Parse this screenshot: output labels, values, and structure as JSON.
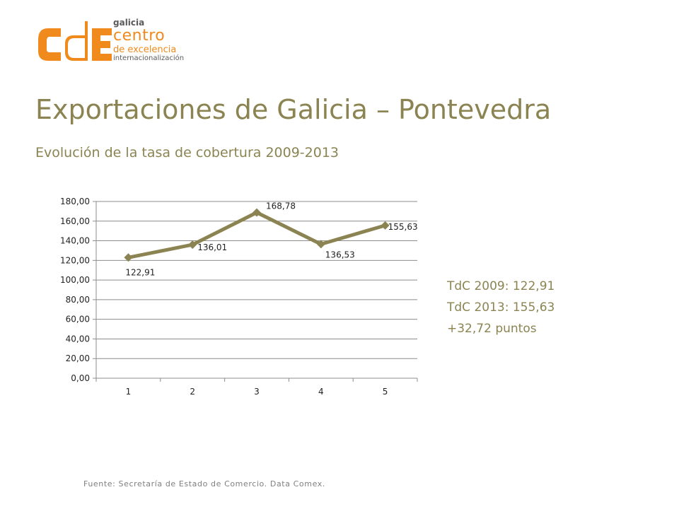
{
  "logo": {
    "line1": "galicia",
    "line2": "centro",
    "line3": "de excelencia",
    "line4": "internacionalización",
    "colors": {
      "orange": "#f08a1d",
      "gray": "#5a5a5a"
    }
  },
  "slide": {
    "title": "Exportaciones de Galicia – Pontevedra",
    "subtitle": "Evolución de la tasa de cobertura 2009-2013"
  },
  "stats": {
    "tdc2009": "TdC 2009: 122,91",
    "tdc2013": "TdC 2013: 155,63",
    "delta": "+32,72 puntos"
  },
  "source": "Fuente: Secretaría de Estado de Comercio. Data Comex.",
  "chart_data": {
    "type": "line",
    "title": "",
    "xlabel": "",
    "ylabel": "",
    "categories": [
      "1",
      "2",
      "3",
      "4",
      "5"
    ],
    "series": [
      {
        "values": [
          122.91,
          136.01,
          168.78,
          136.53,
          155.63
        ],
        "labels": [
          "122,91",
          "136,01",
          "168,78",
          "136,53",
          "155,63"
        ]
      }
    ],
    "ylim": [
      0,
      180
    ],
    "yticks": [
      "0,00",
      "20,00",
      "40,00",
      "60,00",
      "80,00",
      "100,00",
      "120,00",
      "140,00",
      "160,00",
      "180,00"
    ],
    "grid": true,
    "legend": "none",
    "marker": "diamond",
    "color": "#8b8452"
  }
}
